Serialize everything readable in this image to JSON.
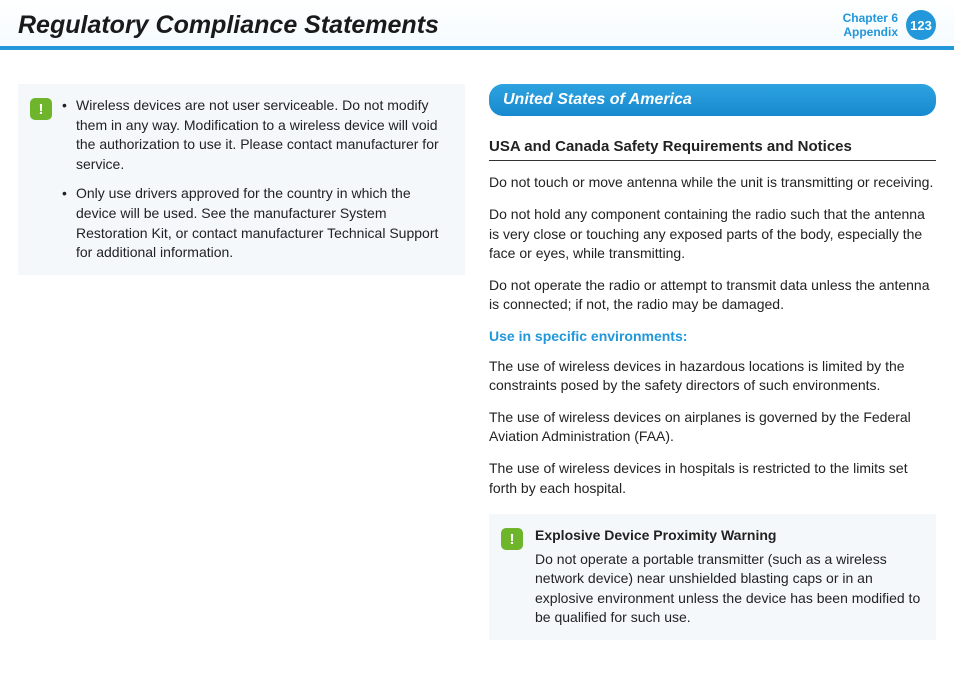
{
  "header": {
    "title": "Regulatory Compliance Statements",
    "chapter_line1": "Chapter 6",
    "chapter_line2": "Appendix",
    "page_number": "123"
  },
  "colors": {
    "accent_blue": "#2297d9",
    "notice_bg": "#f5f8fb",
    "icon_green": "#6fb52c"
  },
  "left": {
    "notice_bullets": [
      "Wireless devices are not user serviceable. Do not modify them in any way. Modification to a wireless device will void the authorization to use it. Please contact manufacturer for service.",
      "Only use drivers approved for the country in which the device will be used. See the manufacturer System Restoration Kit, or contact manufacturer Technical Support for additional information."
    ]
  },
  "right": {
    "banner": "United States of America",
    "sub_heading": "USA and Canada Safety Requirements and Notices",
    "paragraphs": [
      "Do not touch or move antenna while the unit is transmitting or receiving.",
      "Do not hold any component containing the radio such that the antenna is very close or touching any exposed parts of the body, especially the face or eyes, while transmitting.",
      "Do not operate the radio or attempt to transmit data unless the antenna is connected; if not, the radio may be damaged."
    ],
    "blue_sub": "Use in specific environments:",
    "env_paragraphs": [
      "The use of wireless devices in hazardous locations is limited by the constraints posed by the safety directors of such environments.",
      "The use of wireless devices on airplanes is governed by the Federal Aviation Administration (FAA).",
      "The use of wireless devices in hospitals is restricted to the limits set forth by each hospital."
    ],
    "warning": {
      "title": "Explosive Device Proximity Warning",
      "body": "Do not operate a portable transmitter (such as a wireless network device) near unshielded blasting caps or in an explosive environment unless the device has been modified to be qualified for such use."
    }
  }
}
